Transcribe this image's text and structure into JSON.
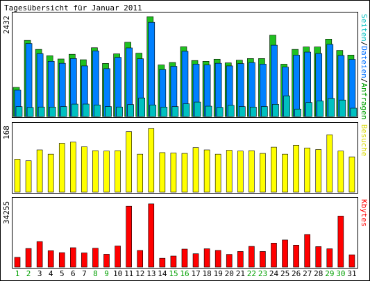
{
  "chart_data": {
    "type": "bar",
    "title": "Tagesübersicht für Januar 2011",
    "days": [
      "1",
      "2",
      "3",
      "4",
      "5",
      "6",
      "7",
      "8",
      "9",
      "10",
      "11",
      "12",
      "13",
      "14",
      "15",
      "16",
      "17",
      "18",
      "19",
      "20",
      "21",
      "22",
      "23",
      "24",
      "25",
      "26",
      "27",
      "28",
      "29",
      "30",
      "31"
    ],
    "weekend_days": [
      "1",
      "2",
      "8",
      "9",
      "15",
      "16",
      "22",
      "23",
      "29",
      "30"
    ],
    "panels": [
      {
        "name": "traffic",
        "max_label": "2432",
        "ymax": 2432,
        "legend": [
          {
            "text": "Seiten",
            "color": "#00c0c0"
          },
          {
            "text": "/",
            "color": "#000000"
          },
          {
            "text": "Dateien",
            "color": "#0070ff"
          },
          {
            "text": "/",
            "color": "#000000"
          },
          {
            "text": "Anfragen",
            "color": "#00a000"
          }
        ],
        "series": [
          {
            "name": "Anfragen",
            "color": "#20c020",
            "values": [
              712,
              1855,
              1636,
              1481,
              1402,
              1517,
              1384,
              1676,
              1294,
              1527,
              1809,
              1544,
              2432,
              1257,
              1317,
              1699,
              1365,
              1346,
              1397,
              1308,
              1372,
              1413,
              1413,
              1983,
              1276,
              1636,
              1695,
              1695,
              1886,
              1611,
              1498
            ]
          },
          {
            "name": "Dateien",
            "color": "#0080ff",
            "values": [
              643,
              1780,
              1533,
              1346,
              1298,
              1413,
              1234,
              1598,
              1167,
              1442,
              1672,
              1407,
              2294,
              1145,
              1224,
              1589,
              1277,
              1257,
              1298,
              1234,
              1291,
              1316,
              1277,
              1738,
              1204,
              1496,
              1570,
              1535,
              1758,
              1488,
              1393
            ]
          },
          {
            "name": "Seiten",
            "color": "#00c0c0",
            "values": [
              242,
              223,
              233,
              232,
              244,
              303,
              304,
              283,
              243,
              233,
              292,
              453,
              283,
              232,
              243,
              312,
              353,
              253,
              224,
              274,
              243,
              232,
              244,
              299,
              505,
              182,
              343,
              379,
              443,
              402,
              203
            ]
          }
        ]
      },
      {
        "name": "besuche",
        "max_label": "168",
        "ymax": 168,
        "legend": [
          {
            "text": "Besuche",
            "color": "#d8d800"
          }
        ],
        "series": [
          {
            "name": "Besuche",
            "color": "#ffff00",
            "values": [
              85,
              81,
              109,
              98,
              126,
              129,
              117,
              107,
              106,
              107,
              156,
              98,
              164,
              102,
              101,
              100,
              115,
              109,
              98,
              108,
              106,
              107,
              100,
              116,
              98,
              121,
              114,
              110,
              148,
              106,
              91
            ]
          }
        ]
      },
      {
        "name": "kbytes",
        "max_label": "34255",
        "ymax": 34255,
        "legend": [
          {
            "text": "Kbytes",
            "color": "#ff0000"
          }
        ],
        "series": [
          {
            "name": "Kbytes",
            "color": "#ff0000",
            "values": [
              5174,
              9800,
              13425,
              8643,
              7618,
              10209,
              7481,
              9942,
              6765,
              11115,
              32000,
              8767,
              33221,
              4678,
              5831,
              9477,
              7046,
              9649,
              8801,
              6694,
              8228,
              10910,
              8228,
              12640,
              14262,
              11551,
              17165,
              10783,
              9649,
              26831,
              6478
            ]
          }
        ]
      }
    ]
  }
}
